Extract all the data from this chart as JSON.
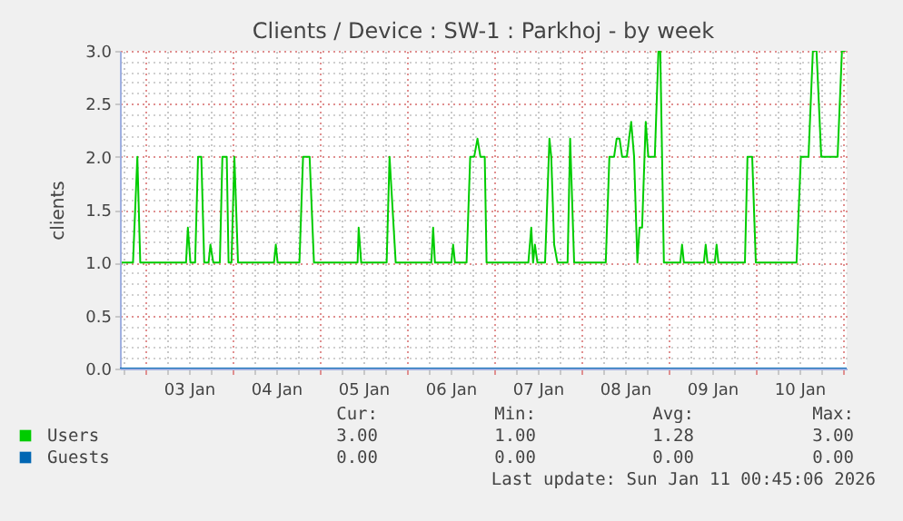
{
  "chart_data": {
    "type": "line",
    "title": "Clients / Device : SW-1 : Parkhoj - by week",
    "ylabel": "clients",
    "xlim": [
      "2026-01-02T17:00",
      "2026-01-11T01:00"
    ],
    "ylim": [
      0,
      3
    ],
    "xticks": [
      {
        "value": "2026-01-02T18:00",
        "label": null
      },
      {
        "value": "2026-01-03T00:00",
        "label": null
      },
      {
        "value": "2026-01-03T06:00",
        "label": null
      },
      {
        "value": "2026-01-03T12:00",
        "label": "03 Jan"
      },
      {
        "value": "2026-01-03T18:00",
        "label": null
      },
      {
        "value": "2026-01-04T00:00",
        "label": null
      },
      {
        "value": "2026-01-04T06:00",
        "label": null
      },
      {
        "value": "2026-01-04T12:00",
        "label": "04 Jan"
      },
      {
        "value": "2026-01-04T18:00",
        "label": null
      },
      {
        "value": "2026-01-05T00:00",
        "label": null
      },
      {
        "value": "2026-01-05T06:00",
        "label": null
      },
      {
        "value": "2026-01-05T12:00",
        "label": "05 Jan"
      },
      {
        "value": "2026-01-05T18:00",
        "label": null
      },
      {
        "value": "2026-01-06T00:00",
        "label": null
      },
      {
        "value": "2026-01-06T06:00",
        "label": null
      },
      {
        "value": "2026-01-06T12:00",
        "label": "06 Jan"
      },
      {
        "value": "2026-01-06T18:00",
        "label": null
      },
      {
        "value": "2026-01-07T00:00",
        "label": null
      },
      {
        "value": "2026-01-07T06:00",
        "label": null
      },
      {
        "value": "2026-01-07T12:00",
        "label": "07 Jan"
      },
      {
        "value": "2026-01-07T18:00",
        "label": null
      },
      {
        "value": "2026-01-08T00:00",
        "label": null
      },
      {
        "value": "2026-01-08T06:00",
        "label": null
      },
      {
        "value": "2026-01-08T12:00",
        "label": "08 Jan"
      },
      {
        "value": "2026-01-08T18:00",
        "label": null
      },
      {
        "value": "2026-01-09T00:00",
        "label": null
      },
      {
        "value": "2026-01-09T06:00",
        "label": null
      },
      {
        "value": "2026-01-09T12:00",
        "label": "09 Jan"
      },
      {
        "value": "2026-01-09T18:00",
        "label": null
      },
      {
        "value": "2026-01-10T00:00",
        "label": null
      },
      {
        "value": "2026-01-10T06:00",
        "label": null
      },
      {
        "value": "2026-01-10T12:00",
        "label": "10 Jan"
      },
      {
        "value": "2026-01-10T18:00",
        "label": null
      },
      {
        "value": "2026-01-11T00:00",
        "label": null
      }
    ],
    "yticks": [
      {
        "value": 0,
        "label": "0.0"
      },
      {
        "value": 0.1,
        "label": null
      },
      {
        "value": 0.2,
        "label": null
      },
      {
        "value": 0.3,
        "label": null
      },
      {
        "value": 0.4,
        "label": null
      },
      {
        "value": 0.5,
        "label": "0.5"
      },
      {
        "value": 0.6,
        "label": null
      },
      {
        "value": 0.7,
        "label": null
      },
      {
        "value": 0.8,
        "label": null
      },
      {
        "value": 0.9,
        "label": null
      },
      {
        "value": 1,
        "label": "1.0"
      },
      {
        "value": 1.1,
        "label": null
      },
      {
        "value": 1.2,
        "label": null
      },
      {
        "value": 1.3,
        "label": null
      },
      {
        "value": 1.4,
        "label": null
      },
      {
        "value": 1.5,
        "label": "1.5"
      },
      {
        "value": 1.6,
        "label": null
      },
      {
        "value": 1.7,
        "label": null
      },
      {
        "value": 1.8,
        "label": null
      },
      {
        "value": 1.9,
        "label": null
      },
      {
        "value": 2,
        "label": "2.0"
      },
      {
        "value": 2.1,
        "label": null
      },
      {
        "value": 2.2,
        "label": null
      },
      {
        "value": 2.3,
        "label": null
      },
      {
        "value": 2.4,
        "label": null
      },
      {
        "value": 2.5,
        "label": "2.5"
      },
      {
        "value": 2.6,
        "label": null
      },
      {
        "value": 2.7,
        "label": null
      },
      {
        "value": 2.8,
        "label": null
      },
      {
        "value": 2.9,
        "label": null
      },
      {
        "value": 3,
        "label": "3.0"
      }
    ],
    "grid": true,
    "legend": "bottom left",
    "marker": "none",
    "line_style": "solid",
    "series": [
      {
        "name": "Users",
        "color": "#00cc00",
        "x": [
          "2026-01-02T17:30",
          "2026-01-02T20:36",
          "2026-01-02T21:48",
          "2026-01-02T22:36",
          "2026-01-03T11:12",
          "2026-01-03T11:42",
          "2026-01-03T12:24",
          "2026-01-03T13:42",
          "2026-01-03T14:30",
          "2026-01-03T15:24",
          "2026-01-03T16:12",
          "2026-01-03T17:24",
          "2026-01-03T17:54",
          "2026-01-03T18:42",
          "2026-01-03T20:30",
          "2026-01-03T21:12",
          "2026-01-03T22:24",
          "2026-01-03T22:54",
          "2026-01-03T23:42",
          "2026-01-04T00:30",
          "2026-01-04T01:30",
          "2026-01-04T11:24",
          "2026-01-04T11:54",
          "2026-01-04T12:24",
          "2026-01-04T18:24",
          "2026-01-04T19:24",
          "2026-01-04T21:12",
          "2026-01-04T22:24",
          "2026-01-05T10:24",
          "2026-01-05T10:42",
          "2026-01-05T11:24",
          "2026-01-05T18:24",
          "2026-01-05T19:12",
          "2026-01-05T20:54",
          "2026-01-06T06:42",
          "2026-01-06T07:12",
          "2026-01-06T07:42",
          "2026-01-06T12:12",
          "2026-01-06T12:42",
          "2026-01-06T13:12",
          "2026-01-06T16:24",
          "2026-01-06T17:24",
          "2026-01-06T18:30",
          "2026-01-06T19:24",
          "2026-01-06T20:12",
          "2026-01-06T21:24",
          "2026-01-06T21:54",
          "2026-01-07T09:24",
          "2026-01-07T10:12",
          "2026-01-07T10:42",
          "2026-01-07T11:12",
          "2026-01-07T11:54",
          "2026-01-07T14:00",
          "2026-01-07T15:12",
          "2026-01-07T15:42",
          "2026-01-07T16:30",
          "2026-01-07T17:24",
          "2026-01-07T20:12",
          "2026-01-07T20:54",
          "2026-01-07T22:00",
          "2026-01-08T06:42",
          "2026-01-08T07:42",
          "2026-01-08T09:00",
          "2026-01-08T09:42",
          "2026-01-08T10:30",
          "2026-01-08T11:12",
          "2026-01-08T12:30",
          "2026-01-08T13:42",
          "2026-01-08T14:30",
          "2026-01-08T15:24",
          "2026-01-08T16:00",
          "2026-01-08T16:42",
          "2026-01-08T17:42",
          "2026-01-08T18:24",
          "2026-01-08T20:12",
          "2026-01-08T21:12",
          "2026-01-08T21:42",
          "2026-01-08T22:42",
          "2026-01-09T03:12",
          "2026-01-09T03:42",
          "2026-01-09T04:12",
          "2026-01-09T09:42",
          "2026-01-09T10:12",
          "2026-01-09T10:42",
          "2026-01-09T12:42",
          "2026-01-09T13:12",
          "2026-01-09T13:42",
          "2026-01-09T21:00",
          "2026-01-09T21:42",
          "2026-01-09T23:00",
          "2026-01-10T00:00",
          "2026-01-10T11:12",
          "2026-01-10T12:24",
          "2026-01-10T14:30",
          "2026-01-10T15:42",
          "2026-01-10T16:42",
          "2026-01-10T18:00",
          "2026-01-10T22:30",
          "2026-01-10T23:42",
          "2026-01-11T00:42"
        ],
        "values": [
          1,
          1,
          2,
          1,
          1,
          1.33,
          1,
          1,
          2,
          2,
          1,
          1,
          1.17,
          1,
          1,
          2,
          2,
          1,
          1,
          2,
          1,
          1,
          1.17,
          1,
          1,
          2,
          2,
          1,
          1,
          1.33,
          1,
          1,
          2,
          1,
          1,
          1.33,
          1,
          1,
          1.17,
          1,
          1,
          2,
          2,
          2.17,
          2,
          2,
          1,
          1,
          1.33,
          1,
          1.17,
          1,
          1,
          2.17,
          2,
          1.17,
          1,
          1,
          2.17,
          1,
          1,
          2,
          2,
          2.17,
          2.17,
          2,
          2,
          2.33,
          2,
          1,
          1.33,
          1.33,
          2.33,
          2,
          2,
          3,
          3,
          1,
          1,
          1.17,
          1,
          1,
          1.17,
          1,
          1,
          1.17,
          1,
          1,
          2,
          2,
          1,
          1,
          2,
          2,
          3,
          3,
          2,
          2,
          3,
          3
        ]
      },
      {
        "name": "Guests",
        "color": "#0066b3",
        "x": [
          "2026-01-02T17:00",
          "2026-01-11T01:00"
        ],
        "values": [
          0,
          0
        ]
      }
    ],
    "annotations": [
      "Cur:",
      "Min:",
      "Avg:",
      "Max:",
      "3.00",
      "1.00",
      "1.28",
      "3.00",
      "0.00",
      "0.00",
      "0.00",
      "0.00",
      "Last update: Sun Jan 11 00:45:06 2026"
    ]
  }
}
